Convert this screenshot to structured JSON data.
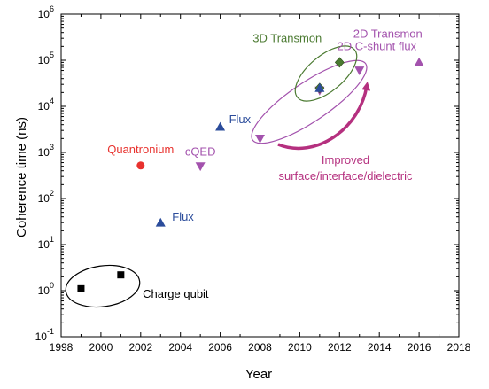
{
  "chart_data": {
    "type": "scatter",
    "title": "",
    "xlabel": "Year",
    "ylabel": "Coherence time (ns)",
    "xlim": [
      1998,
      2018
    ],
    "ylim": [
      0.1,
      1000000
    ],
    "y_scale": "log",
    "grid": false,
    "x_ticks": [
      "1998",
      "2000",
      "2002",
      "2004",
      "2006",
      "2008",
      "2010",
      "2012",
      "2014",
      "2016",
      "2018"
    ],
    "y_ticks": [
      {
        "value": 0.1,
        "exp": "-1"
      },
      {
        "value": 1,
        "exp": "0"
      },
      {
        "value": 10,
        "exp": "1"
      },
      {
        "value": 100,
        "exp": "2"
      },
      {
        "value": 1000,
        "exp": "3"
      },
      {
        "value": 10000,
        "exp": "4"
      },
      {
        "value": 100000,
        "exp": "5"
      },
      {
        "value": 1000000,
        "exp": "6"
      }
    ],
    "tick_base": "10",
    "series": [
      {
        "label": "Charge qubit",
        "marker": "square",
        "color": "#000000",
        "points": [
          {
            "x": 1999,
            "y": 1.1
          },
          {
            "x": 2001,
            "y": 2.2
          }
        ]
      },
      {
        "label": "Quantronium",
        "marker": "circle",
        "color": "#e8322e",
        "points": [
          {
            "x": 2002,
            "y": 520
          }
        ]
      },
      {
        "label": "Flux",
        "marker": "triangle-up",
        "color": "#2b4c9b",
        "points": [
          {
            "x": 2003,
            "y": 30
          }
        ]
      },
      {
        "label": "cQED",
        "marker": "triangle-down",
        "color": "#a352ad",
        "points": [
          {
            "x": 2005,
            "y": 500
          }
        ]
      },
      {
        "label": "Flux",
        "marker": "triangle-up",
        "color": "#2b4c9b",
        "points": [
          {
            "x": 2006,
            "y": 3600
          }
        ]
      },
      {
        "label": "2D Transmon",
        "marker": "triangle-down",
        "color": "#a352ad",
        "points": [
          {
            "x": 2008,
            "y": 2000
          },
          {
            "x": 2011,
            "y": 22000
          },
          {
            "x": 2013,
            "y": 60000
          }
        ]
      },
      {
        "label": "3D Transmon",
        "marker": "diamond",
        "color": "#4b7a31",
        "points": [
          {
            "x": 2011,
            "y": 25000
          },
          {
            "x": 2012,
            "y": 90000
          }
        ]
      },
      {
        "label": "Flux",
        "marker": "triangle-up",
        "color": "#2b4c9b",
        "points": [
          {
            "x": 2011,
            "y": 25000
          }
        ]
      },
      {
        "label": "2D C-shunt flux",
        "marker": "triangle-up",
        "color": "#a352ad",
        "points": [
          {
            "x": 2016,
            "y": 90000
          }
        ]
      }
    ],
    "annotations": [
      {
        "text": "Improved",
        "color": "#b5307f"
      },
      {
        "text": "surface/interface/dielectric",
        "color": "#b5307f"
      }
    ]
  }
}
